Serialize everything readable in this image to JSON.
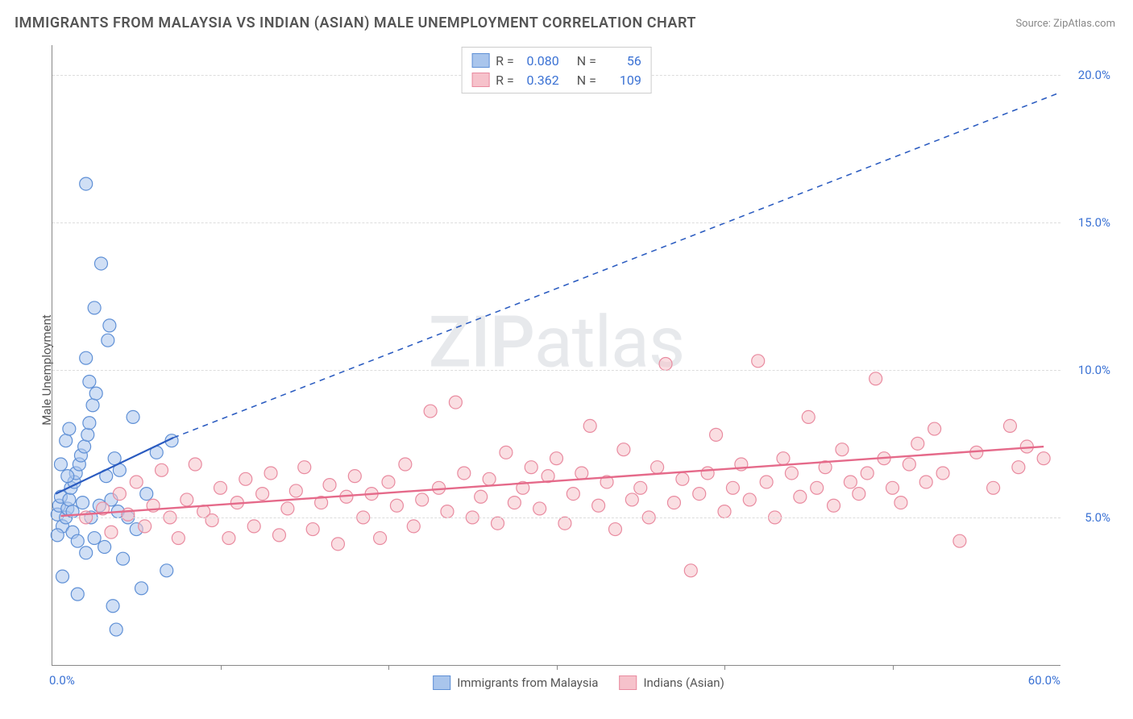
{
  "title": "IMMIGRANTS FROM MALAYSIA VS INDIAN (ASIAN) MALE UNEMPLOYMENT CORRELATION CHART",
  "source_label": "Source:",
  "source_name": "ZipAtlas.com",
  "y_axis_label": "Male Unemployment",
  "watermark_bold": "ZIP",
  "watermark_light": "atlas",
  "chart": {
    "type": "scatter",
    "background_color": "#ffffff",
    "grid_color": "#dddddd",
    "axis_color": "#888888",
    "tick_label_color": "#3b72d4",
    "xlim": [
      0,
      60
    ],
    "ylim": [
      0,
      21
    ],
    "x_ticks": [
      0,
      10,
      20,
      30,
      40,
      50,
      60
    ],
    "x_tick_labels": [
      "0.0%",
      "",
      "",
      "",
      "",
      "",
      "60.0%"
    ],
    "y_ticks": [
      5,
      10,
      15,
      20
    ],
    "y_tick_labels": [
      "5.0%",
      "10.0%",
      "15.0%",
      "20.0%"
    ],
    "series": [
      {
        "name": "Immigrants from Malaysia",
        "fill_color": "#a9c5ec",
        "stroke_color": "#5f90d6",
        "marker_radius": 8,
        "fill_opacity": 0.55,
        "R": "0.080",
        "N": "56",
        "trend_line": {
          "solid_from": [
            0.2,
            5.8
          ],
          "solid_to": [
            7.2,
            7.7
          ],
          "dash_from": [
            7.2,
            7.7
          ],
          "dash_to": [
            60,
            19.4
          ],
          "color": "#2a5bc0",
          "width": 2.2
        },
        "points": [
          [
            0.3,
            5.1
          ],
          [
            0.4,
            5.4
          ],
          [
            0.5,
            5.7
          ],
          [
            0.6,
            4.7
          ],
          [
            0.8,
            5.0
          ],
          [
            0.9,
            5.3
          ],
          [
            1.0,
            5.6
          ],
          [
            1.1,
            6.0
          ],
          [
            1.2,
            4.5
          ],
          [
            1.3,
            6.2
          ],
          [
            1.4,
            6.5
          ],
          [
            1.5,
            4.2
          ],
          [
            1.6,
            6.8
          ],
          [
            1.7,
            7.1
          ],
          [
            1.8,
            5.5
          ],
          [
            1.9,
            7.4
          ],
          [
            2.0,
            3.8
          ],
          [
            2.1,
            7.8
          ],
          [
            2.2,
            8.2
          ],
          [
            2.3,
            5.0
          ],
          [
            2.4,
            8.8
          ],
          [
            2.5,
            4.3
          ],
          [
            2.6,
            9.2
          ],
          [
            2.2,
            9.6
          ],
          [
            2.8,
            5.4
          ],
          [
            2.9,
            13.6
          ],
          [
            2.0,
            16.3
          ],
          [
            3.1,
            4.0
          ],
          [
            3.2,
            6.4
          ],
          [
            3.3,
            11.0
          ],
          [
            3.4,
            11.5
          ],
          [
            3.5,
            5.6
          ],
          [
            3.6,
            2.0
          ],
          [
            3.7,
            7.0
          ],
          [
            3.8,
            1.2
          ],
          [
            3.9,
            5.2
          ],
          [
            4.0,
            6.6
          ],
          [
            4.2,
            3.6
          ],
          [
            4.5,
            5.0
          ],
          [
            4.8,
            8.4
          ],
          [
            5.0,
            4.6
          ],
          [
            5.3,
            2.6
          ],
          [
            5.6,
            5.8
          ],
          [
            2.5,
            12.1
          ],
          [
            6.2,
            7.2
          ],
          [
            2.0,
            10.4
          ],
          [
            6.8,
            3.2
          ],
          [
            7.1,
            7.6
          ],
          [
            1.5,
            2.4
          ],
          [
            0.8,
            7.6
          ],
          [
            1.0,
            8.0
          ],
          [
            0.5,
            6.8
          ],
          [
            0.3,
            4.4
          ],
          [
            0.6,
            3.0
          ],
          [
            1.2,
            5.2
          ],
          [
            0.9,
            6.4
          ]
        ]
      },
      {
        "name": "Indians (Asian)",
        "fill_color": "#f6c2cb",
        "stroke_color": "#e98ba0",
        "marker_radius": 8,
        "fill_opacity": 0.55,
        "R": "0.362",
        "N": "109",
        "trend_line": {
          "solid_from": [
            0.5,
            5.05
          ],
          "solid_to": [
            59,
            7.4
          ],
          "color": "#e56a8a",
          "width": 2.4
        },
        "points": [
          [
            2.0,
            5.0
          ],
          [
            3.0,
            5.3
          ],
          [
            3.5,
            4.5
          ],
          [
            4.0,
            5.8
          ],
          [
            4.5,
            5.1
          ],
          [
            5.0,
            6.2
          ],
          [
            5.5,
            4.7
          ],
          [
            6.0,
            5.4
          ],
          [
            6.5,
            6.6
          ],
          [
            7.0,
            5.0
          ],
          [
            7.5,
            4.3
          ],
          [
            8.0,
            5.6
          ],
          [
            8.5,
            6.8
          ],
          [
            9.0,
            5.2
          ],
          [
            9.5,
            4.9
          ],
          [
            10.0,
            6.0
          ],
          [
            10.5,
            4.3
          ],
          [
            11.0,
            5.5
          ],
          [
            11.5,
            6.3
          ],
          [
            12.0,
            4.7
          ],
          [
            12.5,
            5.8
          ],
          [
            13.0,
            6.5
          ],
          [
            13.5,
            4.4
          ],
          [
            14.0,
            5.3
          ],
          [
            14.5,
            5.9
          ],
          [
            15.0,
            6.7
          ],
          [
            15.5,
            4.6
          ],
          [
            16.0,
            5.5
          ],
          [
            16.5,
            6.1
          ],
          [
            17.0,
            4.1
          ],
          [
            17.5,
            5.7
          ],
          [
            18.0,
            6.4
          ],
          [
            18.5,
            5.0
          ],
          [
            19.0,
            5.8
          ],
          [
            19.5,
            4.3
          ],
          [
            20.0,
            6.2
          ],
          [
            20.5,
            5.4
          ],
          [
            21.0,
            6.8
          ],
          [
            21.5,
            4.7
          ],
          [
            22.0,
            5.6
          ],
          [
            22.5,
            8.6
          ],
          [
            23.0,
            6.0
          ],
          [
            23.5,
            5.2
          ],
          [
            24.0,
            8.9
          ],
          [
            24.5,
            6.5
          ],
          [
            25.0,
            5.0
          ],
          [
            25.5,
            5.7
          ],
          [
            26.0,
            6.3
          ],
          [
            26.5,
            4.8
          ],
          [
            27.0,
            7.2
          ],
          [
            27.5,
            5.5
          ],
          [
            28.0,
            6.0
          ],
          [
            28.5,
            6.7
          ],
          [
            29.0,
            5.3
          ],
          [
            29.5,
            6.4
          ],
          [
            30.0,
            7.0
          ],
          [
            30.5,
            4.8
          ],
          [
            31.0,
            5.8
          ],
          [
            31.5,
            6.5
          ],
          [
            32.0,
            8.1
          ],
          [
            32.5,
            5.4
          ],
          [
            33.0,
            6.2
          ],
          [
            33.5,
            4.6
          ],
          [
            34.0,
            7.3
          ],
          [
            34.5,
            5.6
          ],
          [
            35.0,
            6.0
          ],
          [
            35.5,
            5.0
          ],
          [
            36.0,
            6.7
          ],
          [
            36.5,
            10.2
          ],
          [
            37.0,
            5.5
          ],
          [
            37.5,
            6.3
          ],
          [
            38.0,
            3.2
          ],
          [
            38.5,
            5.8
          ],
          [
            39.0,
            6.5
          ],
          [
            39.5,
            7.8
          ],
          [
            40.0,
            5.2
          ],
          [
            40.5,
            6.0
          ],
          [
            41.0,
            6.8
          ],
          [
            41.5,
            5.6
          ],
          [
            42.0,
            10.3
          ],
          [
            42.5,
            6.2
          ],
          [
            43.0,
            5.0
          ],
          [
            43.5,
            7.0
          ],
          [
            44.0,
            6.5
          ],
          [
            44.5,
            5.7
          ],
          [
            45.0,
            8.4
          ],
          [
            45.5,
            6.0
          ],
          [
            46.0,
            6.7
          ],
          [
            46.5,
            5.4
          ],
          [
            47.0,
            7.3
          ],
          [
            47.5,
            6.2
          ],
          [
            48.0,
            5.8
          ],
          [
            48.5,
            6.5
          ],
          [
            49.0,
            9.7
          ],
          [
            49.5,
            7.0
          ],
          [
            50.0,
            6.0
          ],
          [
            50.5,
            5.5
          ],
          [
            51.0,
            6.8
          ],
          [
            51.5,
            7.5
          ],
          [
            52.0,
            6.2
          ],
          [
            52.5,
            8.0
          ],
          [
            53.0,
            6.5
          ],
          [
            54.0,
            4.2
          ],
          [
            55.0,
            7.2
          ],
          [
            56.0,
            6.0
          ],
          [
            57.0,
            8.1
          ],
          [
            57.5,
            6.7
          ],
          [
            58.0,
            7.4
          ],
          [
            59.0,
            7.0
          ]
        ]
      }
    ],
    "legend_top_labels": {
      "R": "R =",
      "N": "N ="
    },
    "legend_bottom": [
      {
        "label": "Immigrants from Malaysia",
        "fill": "#a9c5ec",
        "stroke": "#5f90d6"
      },
      {
        "label": "Indians (Asian)",
        "fill": "#f6c2cb",
        "stroke": "#e98ba0"
      }
    ]
  }
}
